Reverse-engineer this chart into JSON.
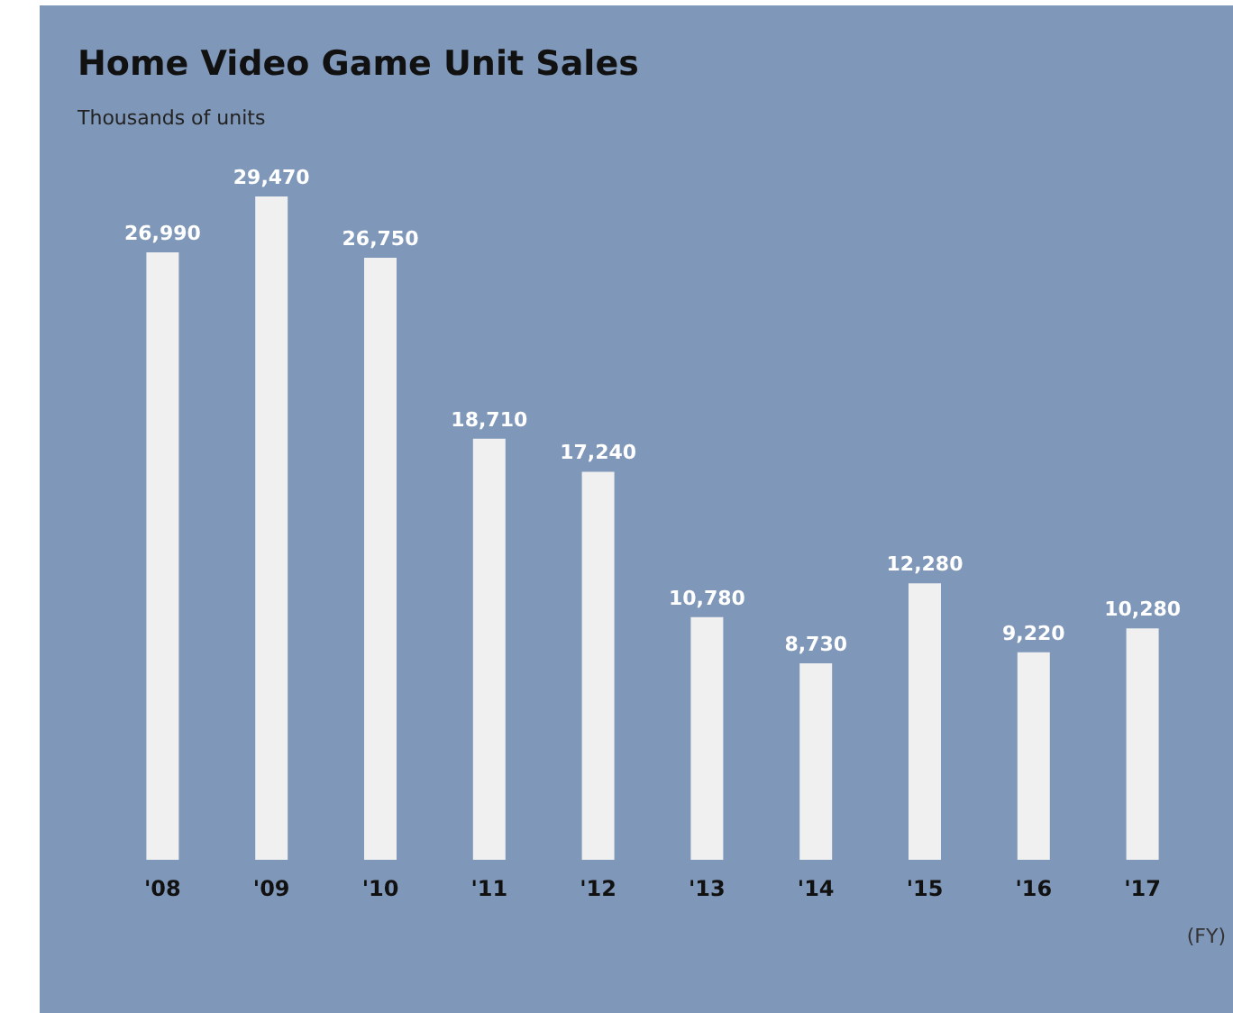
{
  "chart_data": {
    "type": "bar",
    "title": "Home Video Game Unit Sales",
    "subtitle": "Thousands of units",
    "categories": [
      "'08",
      "'09",
      "'10",
      "'11",
      "'12",
      "'13",
      "'14",
      "'15",
      "'16",
      "'17"
    ],
    "values": [
      26990,
      29470,
      26750,
      18710,
      17240,
      10780,
      8730,
      12280,
      9220,
      10280
    ],
    "value_labels": [
      "26,990",
      "29,470",
      "26,750",
      "18,710",
      "17,240",
      "10,780",
      "8,730",
      "12,280",
      "9,220",
      "10,280"
    ],
    "color": "#f0f0f0",
    "annotations": [
      "(FY)"
    ]
  }
}
